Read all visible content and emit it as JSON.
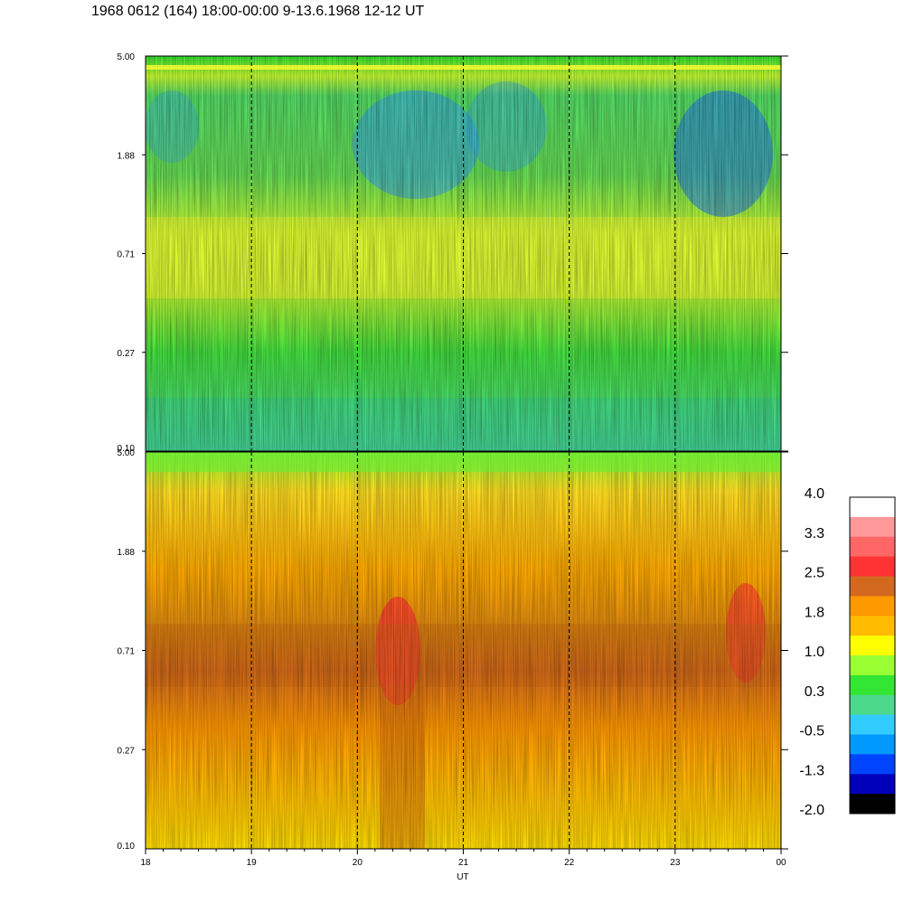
{
  "title": "1968 0612 (164) 18:00-00:00 9-13.6.1968  12-12 UT",
  "chart_data": {
    "type": "heatmap",
    "panels": [
      {
        "name": "upper",
        "yticks": [
          "5.00",
          "1.88",
          "0.71",
          "0.27",
          "0.10"
        ],
        "ylim": [
          0.1,
          5.0
        ],
        "yscale": "log"
      },
      {
        "name": "lower",
        "yticks": [
          "5.00",
          "1.88",
          "0.71",
          "0.27",
          "0.10"
        ],
        "ylim": [
          0.1,
          5.0
        ],
        "yscale": "log"
      }
    ],
    "xticks": [
      "18",
      "19",
      "20",
      "21",
      "22",
      "23",
      "00"
    ],
    "xlabel": "UT",
    "dashed_hours": [
      "19",
      "20",
      "21",
      "22",
      "23"
    ],
    "colorbar": {
      "labels": [
        "4.0",
        "3.3",
        "2.5",
        "1.8",
        "1.0",
        "0.3",
        "-0.5",
        "-1.3",
        "-2.0"
      ],
      "range": [
        -2.0,
        4.0
      ],
      "colors": [
        "#ffffff",
        "#ff9999",
        "#ff6666",
        "#ff3333",
        "#d2691e",
        "#ff9900",
        "#ffbb00",
        "#ffff00",
        "#99ff33",
        "#33e633",
        "#4dd98c",
        "#33ccff",
        "#0099ff",
        "#0044ff",
        "#0000bb",
        "#000000"
      ]
    }
  }
}
